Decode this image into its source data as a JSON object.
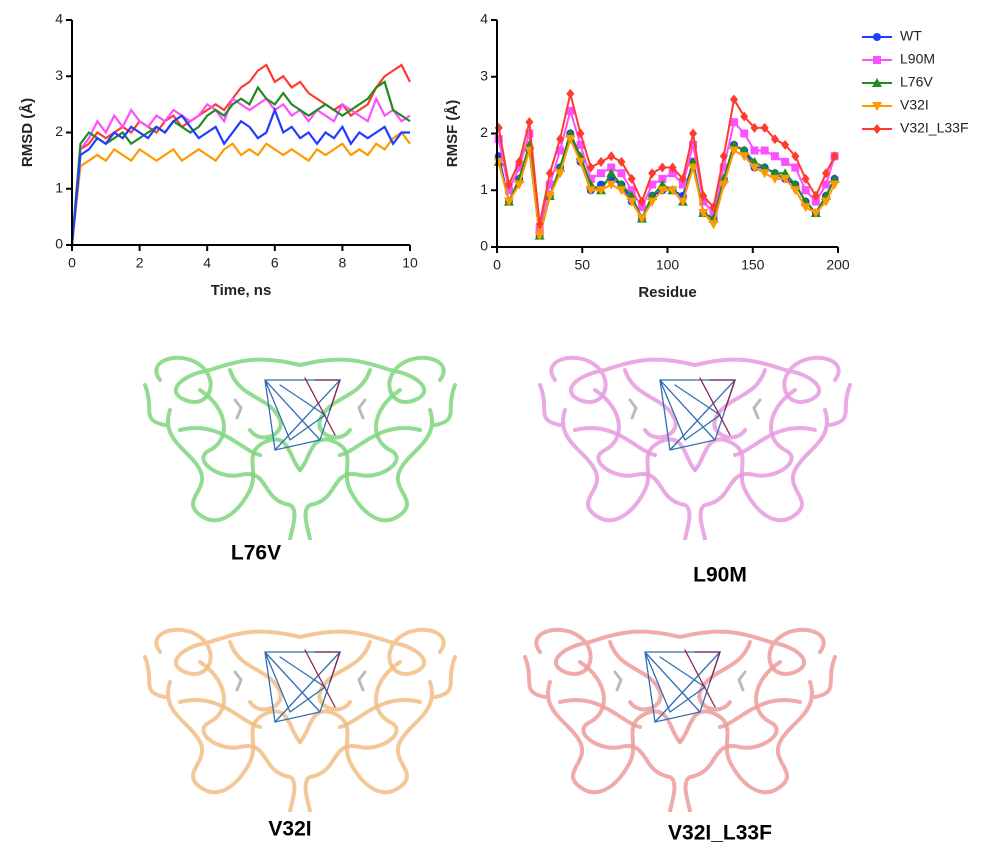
{
  "chart_data": [
    {
      "type": "line",
      "xlabel": "Time, ns",
      "ylabel": "RMSD (Å)",
      "x": [
        0,
        0.25,
        0.5,
        0.75,
        1,
        1.25,
        1.5,
        1.75,
        2,
        2.25,
        2.5,
        2.75,
        3,
        3.25,
        3.5,
        3.75,
        4,
        4.25,
        4.5,
        4.75,
        5,
        5.25,
        5.5,
        5.75,
        6,
        6.25,
        6.5,
        6.75,
        7,
        7.25,
        7.5,
        7.75,
        8,
        8.25,
        8.5,
        8.75,
        9,
        9.25,
        9.5,
        9.75,
        10
      ],
      "xlim": [
        0,
        10
      ],
      "xticks": [
        0,
        2,
        4,
        6,
        8,
        10
      ],
      "ylim": [
        0,
        4
      ],
      "yticks": [
        0,
        1,
        2,
        3,
        4
      ],
      "series": [
        {
          "color": "#ff3b2f",
          "values": [
            0,
            1.7,
            1.8,
            2.0,
            1.9,
            2.0,
            2.1,
            2.0,
            2.2,
            2.1,
            2.0,
            2.2,
            2.3,
            2.1,
            2.2,
            2.3,
            2.4,
            2.5,
            2.4,
            2.6,
            2.8,
            2.9,
            3.1,
            3.2,
            2.9,
            3.0,
            2.8,
            2.9,
            2.7,
            2.6,
            2.5,
            2.4,
            2.5,
            2.3,
            2.4,
            2.5,
            2.8,
            3.0,
            3.1,
            3.2,
            2.9
          ]
        },
        {
          "color": "#ff4dff",
          "values": [
            0,
            1.7,
            1.9,
            2.2,
            2.0,
            2.3,
            2.1,
            2.4,
            2.2,
            2.1,
            2.3,
            2.2,
            2.4,
            2.3,
            2.2,
            2.3,
            2.5,
            2.4,
            2.2,
            2.6,
            2.5,
            2.4,
            2.5,
            2.6,
            2.4,
            2.5,
            2.3,
            2.4,
            2.2,
            2.4,
            2.3,
            2.2,
            2.5,
            2.4,
            2.3,
            2.2,
            2.6,
            2.3,
            2.4,
            2.2,
            2.3
          ]
        },
        {
          "color": "#1e8c1e",
          "values": [
            0,
            1.8,
            2.0,
            1.9,
            1.8,
            1.9,
            2.0,
            1.8,
            1.9,
            2.0,
            2.1,
            2.0,
            2.2,
            2.1,
            2.0,
            2.1,
            2.3,
            2.4,
            2.3,
            2.5,
            2.6,
            2.5,
            2.8,
            2.6,
            2.5,
            2.7,
            2.5,
            2.4,
            2.3,
            2.4,
            2.5,
            2.4,
            2.3,
            2.4,
            2.5,
            2.6,
            2.8,
            2.9,
            2.4,
            2.3,
            2.2
          ]
        },
        {
          "color": "#ff9900",
          "values": [
            0,
            1.4,
            1.5,
            1.6,
            1.5,
            1.7,
            1.6,
            1.5,
            1.7,
            1.6,
            1.5,
            1.6,
            1.7,
            1.5,
            1.6,
            1.7,
            1.6,
            1.5,
            1.7,
            1.8,
            1.6,
            1.7,
            1.6,
            1.8,
            1.7,
            1.6,
            1.7,
            1.6,
            1.5,
            1.7,
            1.6,
            1.7,
            1.8,
            1.6,
            1.7,
            1.6,
            1.8,
            1.7,
            1.9,
            2.0,
            1.8
          ]
        },
        {
          "color": "#1f3cff",
          "values": [
            0,
            1.6,
            1.7,
            1.9,
            1.8,
            2.0,
            1.9,
            2.1,
            2.0,
            1.9,
            2.1,
            2.0,
            2.2,
            2.3,
            2.1,
            1.9,
            2.0,
            2.1,
            1.8,
            2.0,
            2.2,
            2.1,
            1.9,
            2.0,
            2.4,
            2.0,
            2.1,
            1.9,
            2.0,
            1.8,
            2.0,
            1.9,
            2.1,
            1.8,
            2.0,
            1.9,
            2.0,
            2.1,
            1.8,
            2.0,
            2.0
          ]
        }
      ]
    },
    {
      "type": "line",
      "xlabel": "Residue",
      "ylabel": "RMSF (Å)",
      "legend": "right",
      "x": [
        1,
        7,
        13,
        19,
        25,
        31,
        37,
        43,
        49,
        55,
        61,
        67,
        73,
        79,
        85,
        91,
        97,
        103,
        109,
        115,
        121,
        127,
        133,
        139,
        145,
        151,
        157,
        163,
        169,
        175,
        181,
        187,
        193,
        198
      ],
      "xlim": [
        0,
        200
      ],
      "xticks": [
        0,
        50,
        100,
        150,
        200
      ],
      "ylim": [
        0,
        4
      ],
      "yticks": [
        0,
        1,
        2,
        3,
        4
      ],
      "series": [
        {
          "name": "WT",
          "color": "#1f3cff",
          "marker": "circle",
          "values": [
            1.6,
            0.8,
            1.2,
            1.7,
            0.2,
            0.9,
            1.4,
            2.0,
            1.5,
            1.0,
            1.1,
            1.2,
            1.1,
            0.8,
            0.5,
            0.9,
            1.0,
            1.0,
            0.9,
            1.5,
            0.6,
            0.5,
            1.2,
            1.8,
            1.7,
            1.4,
            1.4,
            1.3,
            1.2,
            1.1,
            0.8,
            0.6,
            0.9,
            1.2
          ]
        },
        {
          "name": "L90M",
          "color": "#ff4dff",
          "marker": "square",
          "values": [
            1.9,
            1.0,
            1.4,
            2.0,
            0.3,
            1.1,
            1.7,
            2.4,
            1.8,
            1.2,
            1.3,
            1.4,
            1.3,
            1.0,
            0.7,
            1.1,
            1.2,
            1.3,
            1.1,
            1.8,
            0.8,
            0.6,
            1.4,
            2.2,
            2.0,
            1.7,
            1.7,
            1.6,
            1.5,
            1.4,
            1.0,
            0.8,
            1.1,
            1.6
          ]
        },
        {
          "name": "L76V",
          "color": "#1e8c1e",
          "marker": "triangle",
          "values": [
            1.5,
            0.8,
            1.2,
            1.8,
            0.2,
            0.9,
            1.4,
            2.0,
            1.6,
            1.1,
            1.0,
            1.3,
            1.1,
            0.9,
            0.5,
            0.9,
            1.1,
            1.0,
            0.8,
            1.5,
            0.6,
            0.5,
            1.2,
            1.8,
            1.7,
            1.5,
            1.4,
            1.3,
            1.3,
            1.1,
            0.8,
            0.6,
            0.9,
            1.2
          ]
        },
        {
          "name": "V32I",
          "color": "#ff9900",
          "marker": "down-triangle",
          "values": [
            1.5,
            0.8,
            1.1,
            1.7,
            0.2,
            0.9,
            1.3,
            1.9,
            1.5,
            1.0,
            1.0,
            1.1,
            1.0,
            0.8,
            0.5,
            0.8,
            1.0,
            1.0,
            0.8,
            1.4,
            0.6,
            0.4,
            1.1,
            1.7,
            1.6,
            1.4,
            1.3,
            1.2,
            1.2,
            1.0,
            0.7,
            0.6,
            0.8,
            1.1
          ]
        },
        {
          "name": "V32I_L33F",
          "color": "#ff3b2f",
          "marker": "diamond",
          "values": [
            2.1,
            1.1,
            1.5,
            2.2,
            0.4,
            1.3,
            1.9,
            2.7,
            2.0,
            1.4,
            1.5,
            1.6,
            1.5,
            1.2,
            0.8,
            1.3,
            1.4,
            1.4,
            1.2,
            2.0,
            0.9,
            0.7,
            1.6,
            2.6,
            2.3,
            2.1,
            2.1,
            1.9,
            1.8,
            1.6,
            1.2,
            0.9,
            1.3,
            1.6
          ]
        }
      ]
    }
  ],
  "structures": [
    {
      "label": "L76V",
      "color": "#7fd67f"
    },
    {
      "label": "L90M",
      "color": "#e69ade"
    },
    {
      "label": "V32I",
      "color": "#f2bd85"
    },
    {
      "label": "V32I_L33F",
      "color": "#ee9b9b"
    }
  ]
}
